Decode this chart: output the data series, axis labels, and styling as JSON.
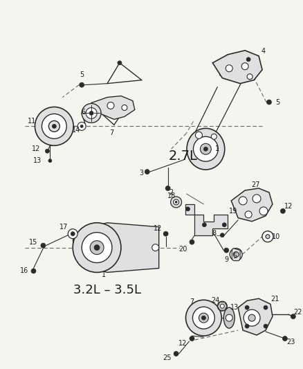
{
  "background_color": "#f5f5f0",
  "line_color": "#2a2a2a",
  "text_color": "#1a1a1a",
  "label_2_7L": "2.7L",
  "label_3_2L": "3.2L – 3.5L",
  "figsize": [
    4.38,
    5.33
  ],
  "dpi": 100,
  "border_color": "#888888",
  "gray_fill": "#c8c8c8",
  "light_gray": "#e0e0e0",
  "dark_gray": "#555555"
}
